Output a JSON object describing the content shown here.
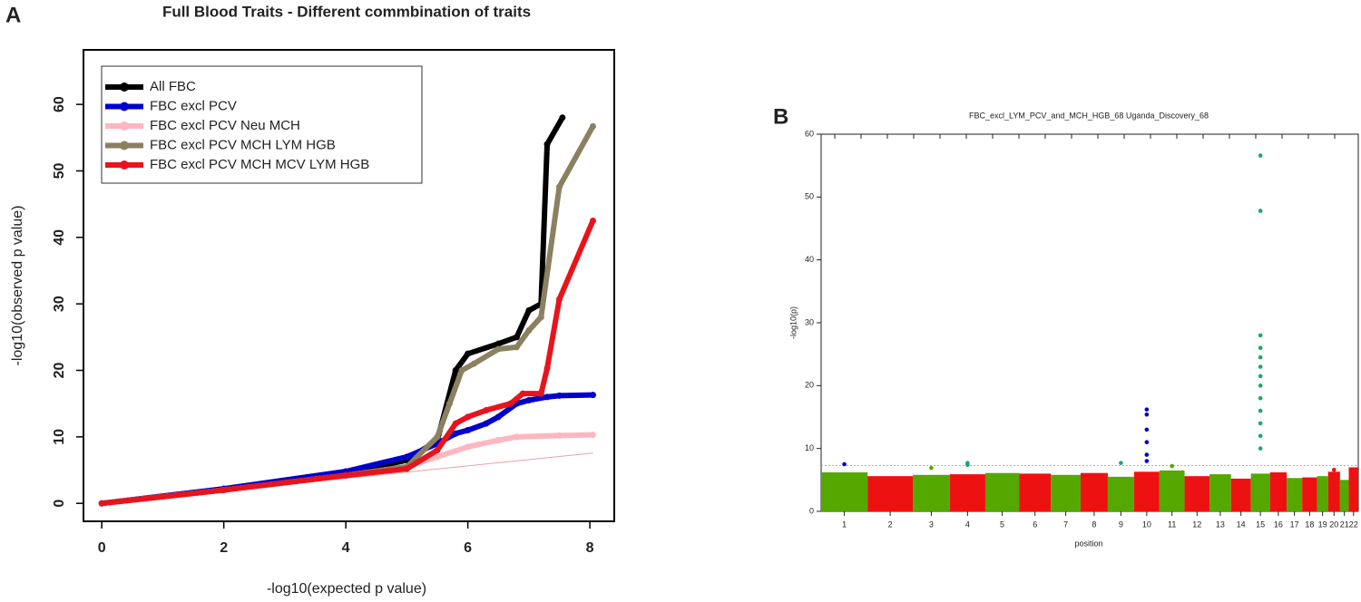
{
  "chart_data": [
    {
      "type": "qq",
      "panel_label": "A",
      "title": "Full Blood Traits - Different commbination of traits",
      "x_label": "-log10(expected p value)",
      "y_label": "-log10(observed p value)",
      "xlim": [
        -0.3,
        8.4
      ],
      "ylim": [
        -2.7,
        68.2
      ],
      "xticks": [
        0,
        2,
        4,
        6,
        8
      ],
      "yticks": [
        0,
        10,
        20,
        30,
        40,
        50,
        60
      ],
      "legend": "top-left",
      "series": [
        {
          "name": "All FBC",
          "color": "#000000",
          "x": [
            0,
            2,
            4,
            5,
            5.5,
            5.8,
            6.0,
            6.5,
            6.8,
            7.0,
            7.2,
            7.3,
            7.55
          ],
          "values": [
            0,
            2.1,
            4.5,
            6.5,
            9.5,
            20,
            22.5,
            24,
            25,
            29,
            30,
            54,
            58
          ]
        },
        {
          "name": "FBC excl PCV",
          "color": "#0000cc",
          "x": [
            0,
            2,
            4,
            5,
            5.5,
            5.8,
            6.0,
            6.3,
            6.5,
            6.8,
            7.0,
            7.3,
            7.5,
            8.05
          ],
          "values": [
            0,
            2.2,
            4.8,
            7,
            9,
            10.5,
            11,
            12,
            13,
            15,
            15.5,
            16,
            16.2,
            16.3
          ]
        },
        {
          "name": "FBC excl PCV Neu MCH",
          "color": "#ffb6c1",
          "x": [
            0,
            2,
            4,
            5,
            5.5,
            6,
            6.5,
            6.8,
            7.5,
            8.05
          ],
          "values": [
            0,
            2,
            4.2,
            5.5,
            7,
            8.5,
            9.5,
            10,
            10.2,
            10.3
          ]
        },
        {
          "name": "FBC excl PCV MCH LYM HGB",
          "color": "#8b8060",
          "x": [
            0,
            2,
            4,
            5,
            5.5,
            5.7,
            5.9,
            6.1,
            6.5,
            6.8,
            7.0,
            7.2,
            7.5,
            8.05
          ],
          "values": [
            0,
            2,
            4.2,
            5.5,
            10,
            15,
            20,
            21,
            23.2,
            23.5,
            26,
            28,
            47.6,
            56.7
          ]
        },
        {
          "name": "FBC excl PCV MCH MCV LYM HGB",
          "color": "#e8141c",
          "x": [
            0,
            2,
            4,
            5,
            5.5,
            5.8,
            6.0,
            6.3,
            6.7,
            6.9,
            7.2,
            7.3,
            7.5,
            8.05
          ],
          "values": [
            0,
            2,
            4.2,
            5.2,
            8,
            12,
            13,
            14,
            15,
            16.5,
            16.5,
            20.3,
            30.7,
            42.5
          ]
        }
      ]
    },
    {
      "type": "manhattan",
      "panel_label": "B",
      "title": "FBC_excl_LYM_PCV_and_MCH_HGB_68 Uganda_Discovery_68",
      "x_label": "position",
      "y_label": "-log10(p)",
      "ylim": [
        0,
        60
      ],
      "yticks": [
        0,
        10,
        20,
        30,
        40,
        50,
        60
      ],
      "threshold": 7.3,
      "colors": [
        "#55a800",
        "#ee1111"
      ],
      "categories": [
        "1",
        "2",
        "3",
        "4",
        "5",
        "6",
        "7",
        "8",
        "9",
        "10",
        "11",
        "12",
        "13",
        "14",
        "15",
        "16",
        "17",
        "18",
        "19",
        "20",
        "21",
        "22"
      ],
      "values": [
        6.2,
        5.6,
        5.8,
        5.9,
        6.1,
        6.0,
        5.8,
        6.1,
        5.5,
        6.3,
        6.5,
        5.6,
        5.9,
        5.2,
        6.0,
        6.2,
        5.3,
        5.4,
        5.6,
        6.3,
        5.0,
        7.0
      ],
      "peaks": {
        "chromosome": [
          "1",
          "3",
          "4",
          "4",
          "9",
          "10",
          "10",
          "10",
          "10",
          "10",
          "10",
          "11",
          "15",
          "15",
          "15",
          "15",
          "15",
          "15",
          "15",
          "15",
          "15",
          "15",
          "15",
          "15",
          "15",
          "20"
        ],
        "values": [
          7.5,
          6.9,
          7.7,
          7.4,
          7.7,
          16.2,
          15.4,
          13,
          11,
          9,
          8,
          7.2,
          56.6,
          47.8,
          28,
          26,
          24.5,
          23,
          21.5,
          20,
          18,
          16,
          14,
          12,
          10,
          6.6
        ],
        "colors": [
          "#0000cc",
          "#55a800",
          "#1aa86a",
          "#1aa86a",
          "#1aa86a",
          "#0000cc",
          "#0000cc",
          "#0000cc",
          "#0000cc",
          "#0000cc",
          "#0000cc",
          "#55a800",
          "#1aa86a",
          "#1aa86a",
          "#1aa86a",
          "#1aa86a",
          "#1aa86a",
          "#1aa86a",
          "#1aa86a",
          "#1aa86a",
          "#1aa86a",
          "#1aa86a",
          "#1aa86a",
          "#1aa86a",
          "#1aa86a",
          "#ee1111"
        ]
      }
    }
  ]
}
